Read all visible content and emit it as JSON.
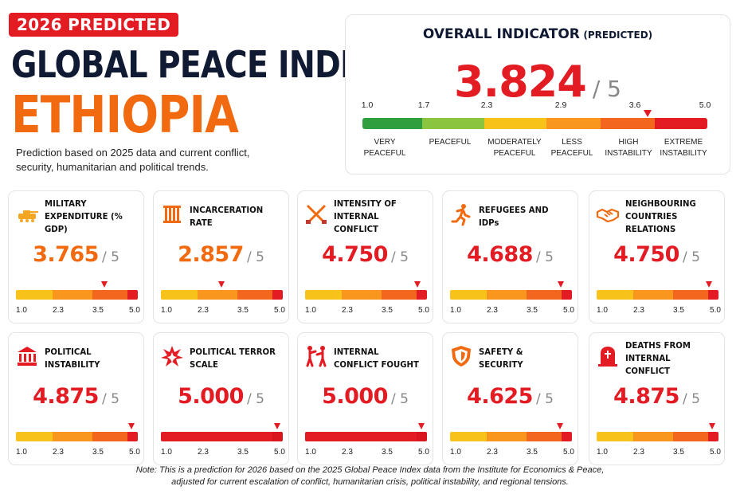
{
  "header": {
    "badge": "2026 PREDICTED",
    "title_line1": "GLOBAL PEACE INDEX",
    "title_line2": "ETHIOPIA",
    "subtitle": "Prediction based on 2025 data and current conflict, security, humanitarian and political trends."
  },
  "overall": {
    "title": "OVERALL INDICATOR",
    "title_suffix": "(PREDICTED)",
    "value": "3.824",
    "max": "/ 5",
    "score": 3.824,
    "ticks": [
      "1.0",
      "1.7",
      "2.3",
      "2.9",
      "3.6",
      "5.0"
    ],
    "categories": [
      {
        "label": "VERY PEACEFUL"
      },
      {
        "label": "PEACEFUL"
      },
      {
        "label": "MODERATELY PEACEFUL"
      },
      {
        "label": "LESS PEACEFUL"
      },
      {
        "label": "HIGH INSTABILITY"
      },
      {
        "label": "EXTREME INSTABILITY"
      }
    ],
    "scale_colors": [
      "#2e9e3f",
      "#8bc43f",
      "#f7c31a",
      "#f9961e",
      "#f2661d",
      "#e31b23"
    ]
  },
  "card_ticks": [
    "1.0",
    "2.3",
    "3.5",
    "5.0"
  ],
  "cards": [
    {
      "label": "MILITARY EXPENDITURE (% GDP)",
      "value": "3.765",
      "max": "/ 5",
      "score": 3.765,
      "icon": "tank-icon",
      "color": "#f26a10"
    },
    {
      "label": "INCARCERATION RATE",
      "value": "2.857",
      "max": "/ 5",
      "score": 2.857,
      "icon": "prison-bars-icon",
      "color": "#f26a10"
    },
    {
      "label": "INTENSITY OF INTERNAL CONFLICT",
      "value": "4.750",
      "max": "/ 5",
      "score": 4.75,
      "icon": "crossed-rifles-icon",
      "color": "#e31b23"
    },
    {
      "label": "REFUGEES AND IDPs",
      "value": "4.688",
      "max": "/ 5",
      "score": 4.688,
      "icon": "running-person-icon",
      "color": "#e31b23"
    },
    {
      "label": "NEIGHBOURING COUNTRIES RELATIONS",
      "value": "4.750",
      "max": "/ 5",
      "score": 4.75,
      "icon": "handshake-icon",
      "color": "#e31b23"
    },
    {
      "label": "POLITICAL INSTABILITY",
      "value": "4.875",
      "max": "/ 5",
      "score": 4.875,
      "icon": "government-building-icon",
      "color": "#e31b23"
    },
    {
      "label": "POLITICAL TERROR SCALE",
      "value": "5.000",
      "max": "/ 5",
      "score": 5.0,
      "icon": "explosion-icon",
      "color": "#e31b23"
    },
    {
      "label": "INTERNAL CONFLICT FOUGHT",
      "value": "5.000",
      "max": "/ 5",
      "score": 5.0,
      "icon": "fighting-people-icon",
      "color": "#e31b23"
    },
    {
      "label": "SAFETY & SECURITY",
      "value": "4.625",
      "max": "/ 5",
      "score": 4.625,
      "icon": "shield-icon",
      "color": "#e31b23"
    },
    {
      "label": "DEATHS FROM INTERNAL CONFLICT",
      "value": "4.875",
      "max": "/ 5",
      "score": 4.875,
      "icon": "gravestone-icon",
      "color": "#e31b23"
    }
  ],
  "card_scale_colors": [
    "#f7c31a",
    "#f9961e",
    "#f2661d",
    "#e31b23"
  ],
  "note": {
    "line1": "Note: This is a prediction for 2026 based on the 2025 Global Peace Index data from the Institute for Economics & Peace,",
    "line2": "adjusted for current escalation of conflict, humanitarian crisis, political instability, and regional tensions."
  }
}
